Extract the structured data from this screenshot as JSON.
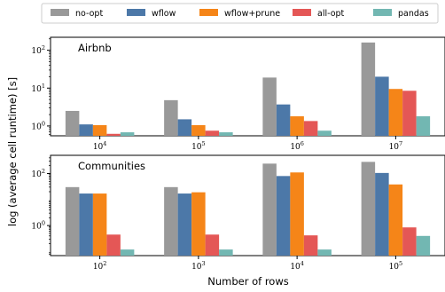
{
  "colors": {
    "no-opt": "#999999",
    "wflow": "#4c78a8",
    "wflow+prune": "#f58518",
    "all-opt": "#e45756",
    "pandas": "#72b7b2"
  },
  "legend": [
    "no-opt",
    "wflow",
    "wflow+prune",
    "all-opt",
    "pandas"
  ],
  "axes": {
    "ylabel": "log (average cell runtime) [s]",
    "xlabel": "Number of rows"
  },
  "chart_data": [
    {
      "type": "bar",
      "title": "Airbnb",
      "yscale": "log",
      "ylim": [
        0.55,
        220
      ],
      "yticks": [
        {
          "value": 1,
          "base": "10",
          "exp": "0"
        },
        {
          "value": 10,
          "base": "10",
          "exp": "1"
        },
        {
          "value": 100,
          "base": "10",
          "exp": "2"
        }
      ],
      "categories": [
        {
          "base": "10",
          "exp": "4"
        },
        {
          "base": "10",
          "exp": "5"
        },
        {
          "base": "10",
          "exp": "6"
        },
        {
          "base": "10",
          "exp": "7"
        }
      ],
      "series": [
        {
          "name": "no-opt",
          "values": [
            2.5,
            4.8,
            19,
            160
          ]
        },
        {
          "name": "wflow",
          "values": [
            1.1,
            1.5,
            3.7,
            20
          ]
        },
        {
          "name": "wflow+prune",
          "values": [
            1.05,
            1.05,
            1.8,
            9.5
          ]
        },
        {
          "name": "all-opt",
          "values": [
            0.62,
            0.75,
            1.35,
            8.5
          ]
        },
        {
          "name": "pandas",
          "values": [
            0.68,
            0.68,
            0.75,
            1.8
          ]
        }
      ]
    },
    {
      "type": "bar",
      "title": "Communities",
      "yscale": "log",
      "ylim": [
        0.07,
        500
      ],
      "yticks": [
        {
          "value": 1,
          "base": "10",
          "exp": "0"
        },
        {
          "value": 100,
          "base": "10",
          "exp": "2"
        }
      ],
      "categories": [
        {
          "base": "10",
          "exp": "2"
        },
        {
          "base": "10",
          "exp": "3"
        },
        {
          "base": "10",
          "exp": "4"
        },
        {
          "base": "10",
          "exp": "5"
        }
      ],
      "series": [
        {
          "name": "no-opt",
          "values": [
            30,
            30,
            240,
            280
          ]
        },
        {
          "name": "wflow",
          "values": [
            17,
            17,
            80,
            105
          ]
        },
        {
          "name": "wflow+prune",
          "values": [
            17,
            19,
            110,
            38
          ]
        },
        {
          "name": "all-opt",
          "values": [
            0.45,
            0.45,
            0.42,
            0.85
          ]
        },
        {
          "name": "pandas",
          "values": [
            0.12,
            0.12,
            0.12,
            0.4
          ]
        }
      ]
    }
  ]
}
